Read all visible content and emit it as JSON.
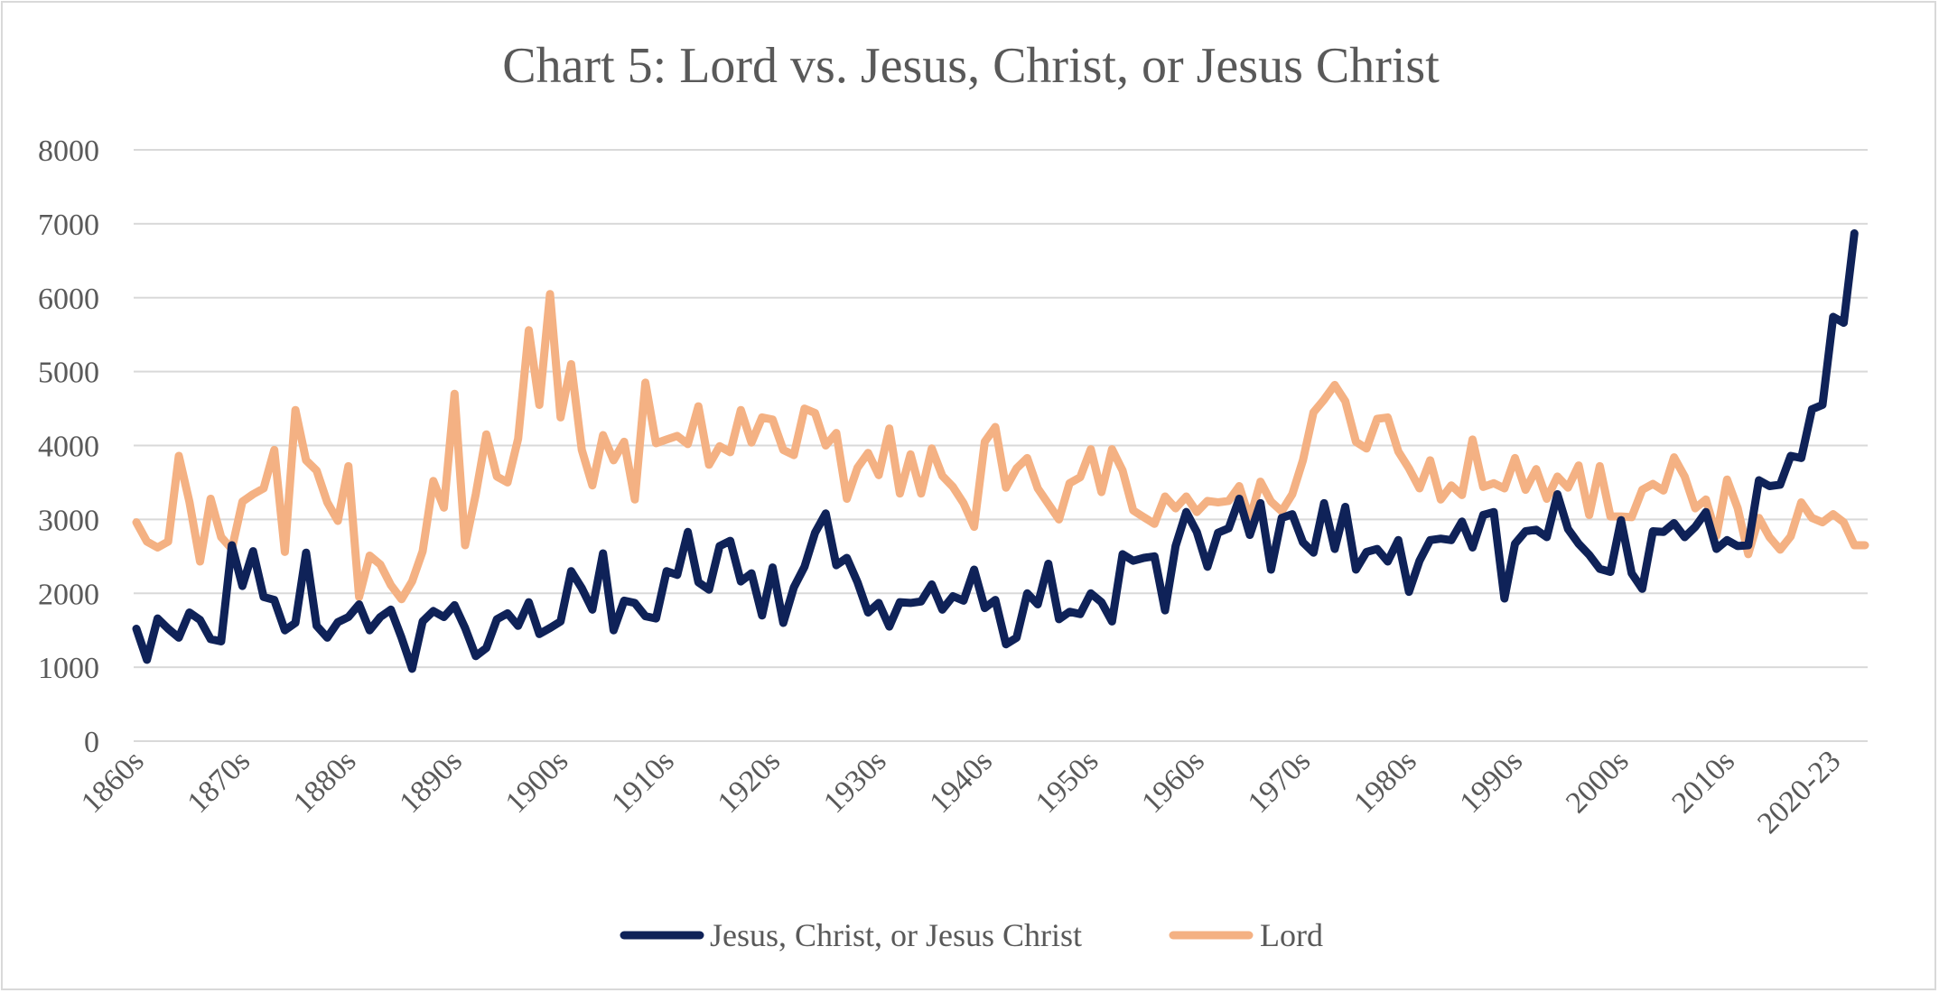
{
  "chart_data": {
    "type": "line",
    "title": "Chart 5: Lord vs. Jesus, Christ, or Jesus Christ",
    "xlabel": "",
    "ylabel": "",
    "ylim": [
      0,
      8000
    ],
    "yticks": [
      "0",
      "1000",
      "2000",
      "3000",
      "4000",
      "5000",
      "6000",
      "7000",
      "8000"
    ],
    "x_tick_labels": [
      "1860s",
      "1870s",
      "1880s",
      "1890s",
      "1900s",
      "1910s",
      "1920s",
      "1930s",
      "1940s",
      "1950s",
      "1960s",
      "1970s",
      "1980s",
      "1990s",
      "2000s",
      "2010s",
      "2020-23"
    ],
    "x_tick_positions": [
      0,
      10,
      20,
      30,
      40,
      50,
      60,
      70,
      80,
      90,
      100,
      110,
      120,
      130,
      140,
      150,
      160
    ],
    "x_count": 164,
    "grid": true,
    "legend_position": "bottom",
    "series": [
      {
        "name": "Jesus, Christ, or Jesus Christ",
        "color": "#0f2258",
        "values": [
          1520,
          1100,
          1660,
          1520,
          1400,
          1740,
          1640,
          1380,
          1350,
          2650,
          2100,
          2570,
          1950,
          1910,
          1500,
          1600,
          2550,
          1560,
          1400,
          1610,
          1680,
          1850,
          1500,
          1680,
          1780,
          1400,
          980,
          1620,
          1760,
          1680,
          1840,
          1530,
          1150,
          1260,
          1650,
          1730,
          1560,
          1880,
          1450,
          1530,
          1620,
          2300,
          2070,
          1780,
          2540,
          1500,
          1900,
          1870,
          1690,
          1660,
          2300,
          2250,
          2830,
          2150,
          2050,
          2640,
          2710,
          2160,
          2270,
          1700,
          2350,
          1600,
          2080,
          2360,
          2820,
          3080,
          2380,
          2480,
          2150,
          1740,
          1870,
          1550,
          1880,
          1870,
          1890,
          2120,
          1780,
          1960,
          1900,
          2320,
          1800,
          1910,
          1310,
          1400,
          2000,
          1850,
          2400,
          1650,
          1750,
          1720,
          2000,
          1880,
          1620,
          2530,
          2440,
          2480,
          2500,
          1770,
          2640,
          3100,
          2830,
          2360,
          2820,
          2880,
          3280,
          2790,
          3220,
          2320,
          3020,
          3070,
          2690,
          2550,
          3220,
          2600,
          3170,
          2320,
          2560,
          2600,
          2430,
          2720,
          2020,
          2440,
          2720,
          2740,
          2720,
          2970,
          2620,
          3060,
          3100,
          1930,
          2670,
          2840,
          2860,
          2760,
          3340,
          2870,
          2670,
          2520,
          2330,
          2290,
          2990,
          2270,
          2060,
          2840,
          2830,
          2950,
          2760,
          2900,
          3100,
          2600,
          2720,
          2640,
          2650,
          3530,
          3450,
          3470,
          3860,
          3830,
          4490,
          4550,
          5740,
          5660,
          6870
        ]
      },
      {
        "name": "Lord",
        "color": "#f4b183",
        "values": [
          2960,
          2700,
          2620,
          2700,
          3860,
          3240,
          2430,
          3280,
          2760,
          2600,
          3240,
          3340,
          3420,
          3940,
          2560,
          4480,
          3800,
          3660,
          3230,
          2980,
          3720,
          1950,
          2510,
          2390,
          2110,
          1920,
          2160,
          2570,
          3520,
          3160,
          4700,
          2650,
          3340,
          4150,
          3580,
          3500,
          4090,
          5560,
          4550,
          6050,
          4380,
          5100,
          3940,
          3460,
          4140,
          3800,
          4050,
          3270,
          4850,
          4030,
          4080,
          4130,
          4020,
          4530,
          3740,
          3990,
          3910,
          4480,
          4040,
          4380,
          4350,
          3940,
          3870,
          4500,
          4440,
          4000,
          4170,
          3280,
          3700,
          3900,
          3600,
          4230,
          3350,
          3880,
          3350,
          3960,
          3590,
          3440,
          3220,
          2900,
          4050,
          4250,
          3430,
          3690,
          3830,
          3420,
          3210,
          3000,
          3490,
          3570,
          3950,
          3370,
          3950,
          3660,
          3120,
          3030,
          2940,
          3310,
          3150,
          3310,
          3100,
          3250,
          3230,
          3250,
          3450,
          3000,
          3510,
          3240,
          3110,
          3340,
          3800,
          4450,
          4620,
          4820,
          4600,
          4050,
          3960,
          4360,
          4380,
          3920,
          3690,
          3420,
          3800,
          3270,
          3460,
          3330,
          4080,
          3440,
          3490,
          3420,
          3830,
          3400,
          3680,
          3280,
          3580,
          3430,
          3730,
          3060,
          3720,
          3040,
          3040,
          3030,
          3400,
          3480,
          3390,
          3840,
          3580,
          3150,
          3270,
          2780,
          3540,
          3150,
          2530,
          3020,
          2760,
          2590,
          2770,
          3230,
          3020,
          2960,
          3070,
          2960,
          2650,
          2650
        ]
      }
    ]
  }
}
